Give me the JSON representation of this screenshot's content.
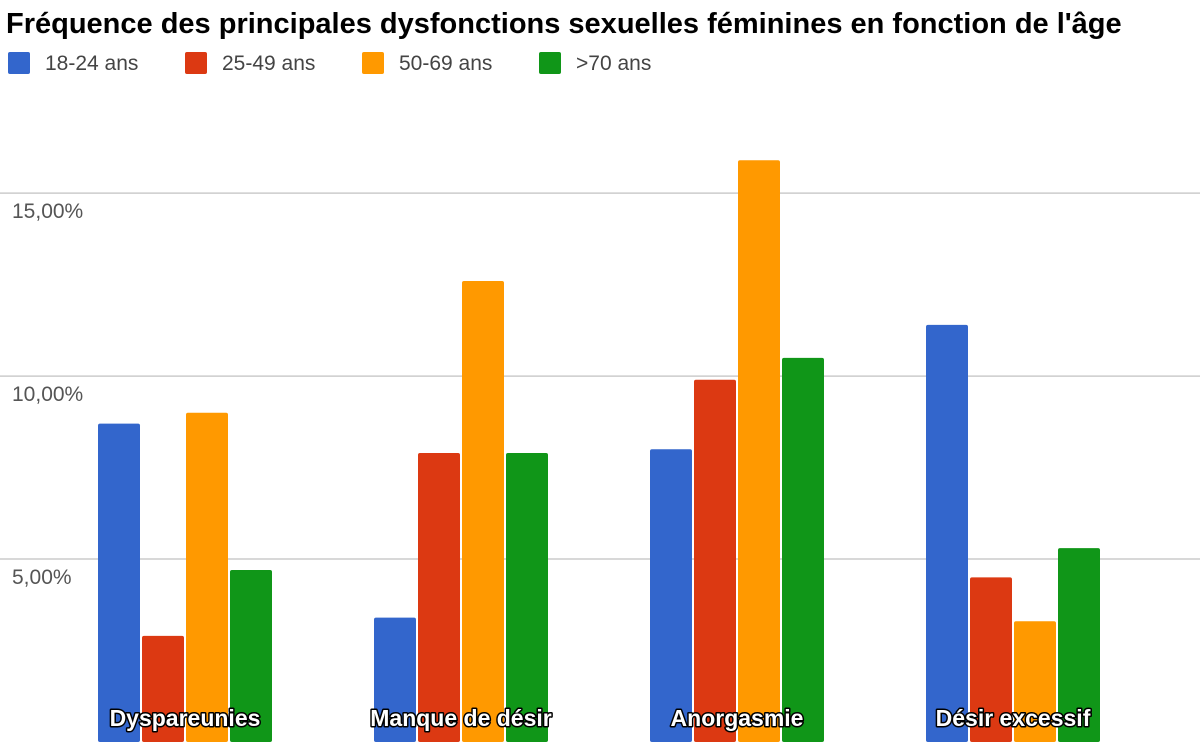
{
  "chart_data": {
    "type": "bar",
    "title": "Fréquence des principales dysfonctions sexuelles féminines en fonction de l'âge",
    "categories": [
      "Dyspareunies",
      "Manque de désir",
      "Anorgasmie",
      "Désir excessif"
    ],
    "series": [
      {
        "name": "18-24 ans",
        "color": "#3366cc",
        "values": [
          8.7,
          3.4,
          8.0,
          11.4
        ]
      },
      {
        "name": "25-49 ans",
        "color": "#dc3912",
        "values": [
          2.9,
          7.9,
          9.9,
          4.5
        ]
      },
      {
        "name": "50-69 ans",
        "color": "#ff9900",
        "values": [
          9.0,
          12.6,
          15.9,
          3.3
        ]
      },
      {
        "name": ">70 ans",
        "color": "#109618",
        "values": [
          4.7,
          7.9,
          10.5,
          5.3
        ]
      }
    ],
    "ylim": [
      0,
      17
    ],
    "yticks": [
      {
        "value": 5,
        "label": "5,00%"
      },
      {
        "value": 10,
        "label": "10,00%"
      },
      {
        "value": 15,
        "label": "15,00%"
      }
    ],
    "xlabel": "",
    "ylabel": "",
    "legend_position": "top-left",
    "grid": true,
    "gridline_color": "#cccccc"
  }
}
